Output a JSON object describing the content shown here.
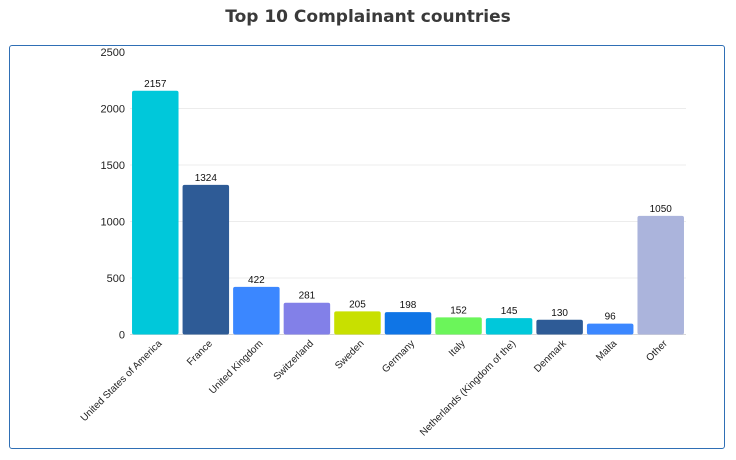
{
  "chart_data": {
    "type": "bar",
    "title": "Top 10 Complainant countries",
    "categories": [
      "United States of America",
      "France",
      "United Kingdom",
      "Switzerland",
      "Sweden",
      "Germany",
      "Italy",
      "Netherlands (Kingdom of the)",
      "Denmark",
      "Malta",
      "Other"
    ],
    "values": [
      2157,
      1324,
      422,
      281,
      205,
      198,
      152,
      145,
      130,
      96,
      1050
    ],
    "colors": [
      "#00c8da",
      "#2e5b96",
      "#3b87ff",
      "#8280e8",
      "#c8e000",
      "#0f75e6",
      "#6bf55a",
      "#00c8da",
      "#2e5b96",
      "#3b87ff",
      "#abb4dc"
    ],
    "yticks": [
      0,
      500,
      1000,
      1500,
      2000,
      2500
    ],
    "ylim": [
      0,
      2500
    ],
    "grid": true,
    "xlabel": "",
    "ylabel": ""
  }
}
